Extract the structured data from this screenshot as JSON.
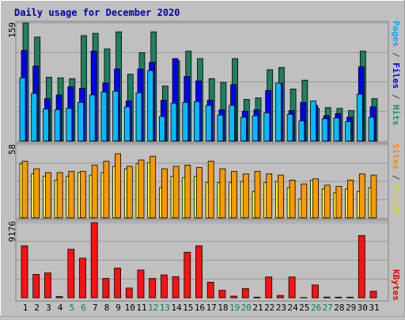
{
  "chart_data": {
    "type": "bar",
    "title": "Daily usage for December 2020",
    "categories": [
      "1",
      "2",
      "3",
      "4",
      "5",
      "6",
      "7",
      "8",
      "9",
      "10",
      "11",
      "12",
      "13",
      "14",
      "15",
      "16",
      "17",
      "18",
      "19",
      "20",
      "21",
      "22",
      "23",
      "24",
      "25",
      "26",
      "27",
      "28",
      "29",
      "30",
      "31"
    ],
    "weekend_days": [
      "5",
      "6",
      "12",
      "13",
      "19",
      "20",
      "26",
      "27"
    ],
    "panels": [
      {
        "ymax_label": "159",
        "ymax": 159,
        "right_labels": [
          {
            "text": "Pages",
            "color": "#00aaff"
          },
          {
            "text": " / ",
            "color": "#444444"
          },
          {
            "text": "Files",
            "color": "#0000ee"
          },
          {
            "text": " / ",
            "color": "#444444"
          },
          {
            "text": "Hits",
            "color": "#1f8f5f"
          }
        ],
        "series": [
          {
            "name": "Hits",
            "color": "#1f7f5f",
            "values": [
              159,
              140,
              86,
              85,
              84,
              142,
              145,
              124,
              147,
              90,
              119,
              147,
              74,
              108,
              121,
              111,
              84,
              79,
              111,
              56,
              58,
              96,
              99,
              70,
              82,
              44,
              45,
              44,
              41,
              121,
              57
            ]
          },
          {
            "name": "Files",
            "color": "#0000ee",
            "values": [
              122,
              101,
              57,
              62,
              73,
              71,
              121,
              78,
              97,
              54,
              97,
              106,
              55,
              111,
              87,
              81,
              55,
              42,
              76,
              40,
              42,
              68,
              78,
              41,
              52,
              48,
              34,
              37,
              32,
              100,
              46
            ]
          },
          {
            "name": "Pages",
            "color": "#00bbff",
            "values": [
              85,
              64,
              43,
              42,
              44,
              52,
              62,
              66,
              67,
              46,
              65,
              95,
              33,
              51,
              52,
              53,
              48,
              35,
              48,
              32,
              34,
              38,
              78,
              36,
              27,
              54,
              30,
              31,
              26,
              63,
              32
            ]
          }
        ]
      },
      {
        "ymax_label": "58",
        "ymax": 58,
        "right_labels": [
          {
            "text": "Sites",
            "color": "#ff8800"
          },
          {
            "text": " / ",
            "color": "#444444"
          },
          {
            "text": "Visits",
            "color": "#dddd00"
          }
        ],
        "series": [
          {
            "name": "Visits",
            "color": "#ffff33",
            "values": [
              43,
              35,
              33,
              30,
              33,
              36,
              34,
              36,
              41,
              39,
              43,
              44,
              24,
              33,
              32,
              33,
              28,
              28,
              28,
              29,
              21,
              28,
              29,
              24,
              15,
              30,
              23,
              20,
              23,
              21,
              24
            ]
          },
          {
            "name": "Sites",
            "color": "#ff9900",
            "values": [
              45,
              39,
              36,
              36,
              37,
              37,
              42,
              45,
              51,
              41,
              46,
              49,
              39,
              41,
              42,
              40,
              45,
              39,
              37,
              35,
              37,
              35,
              34,
              30,
              27,
              31,
              26,
              25,
              30,
              35,
              34
            ]
          }
        ]
      },
      {
        "ymax_label": "9176",
        "ymax": 9176,
        "right_labels": [
          {
            "text": "KBytes",
            "color": "#ee0000"
          }
        ],
        "series": [
          {
            "name": "KBytes",
            "color": "#ff1111",
            "values": [
              6350,
              2860,
              3030,
              150,
              5920,
              4830,
              9176,
              2370,
              3630,
              1190,
              3390,
              2370,
              2790,
              2580,
              5550,
              6350,
              1900,
              910,
              200,
              1130,
              80,
              2540,
              290,
              2540,
              40,
              1560,
              90,
              80,
              80,
              7600,
              800
            ]
          }
        ]
      }
    ]
  },
  "colors": {
    "background": "#c0c0c0",
    "title": "#0000aa",
    "grid": "#999999",
    "weekday_label": "#000000",
    "weekend_label": "#00805f"
  }
}
